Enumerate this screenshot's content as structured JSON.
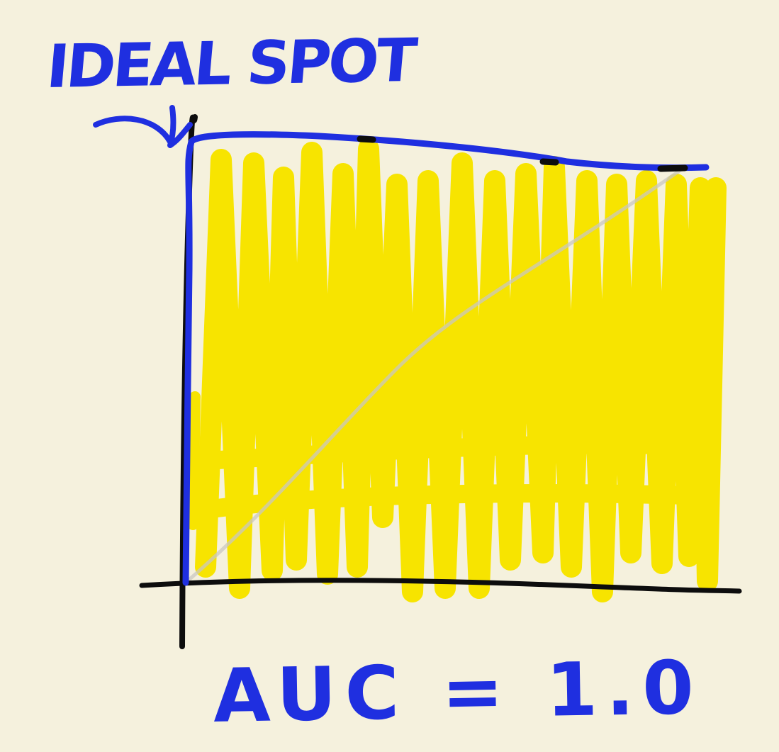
{
  "annotation": {
    "ideal_spot_text": "IDEAL SPOT",
    "auc_text": "AUC = 1.0"
  },
  "colors": {
    "background": "#f5f1dd",
    "area_fill": "#f7e400",
    "ink_blue": "#1f2fe0",
    "ink_black": "#0d0d0d",
    "diagonal": "#c9c7c0"
  },
  "icons": {
    "pointer": "curved-arrow-icon"
  },
  "curve": {
    "kind": "roc",
    "auc": 1.0
  }
}
